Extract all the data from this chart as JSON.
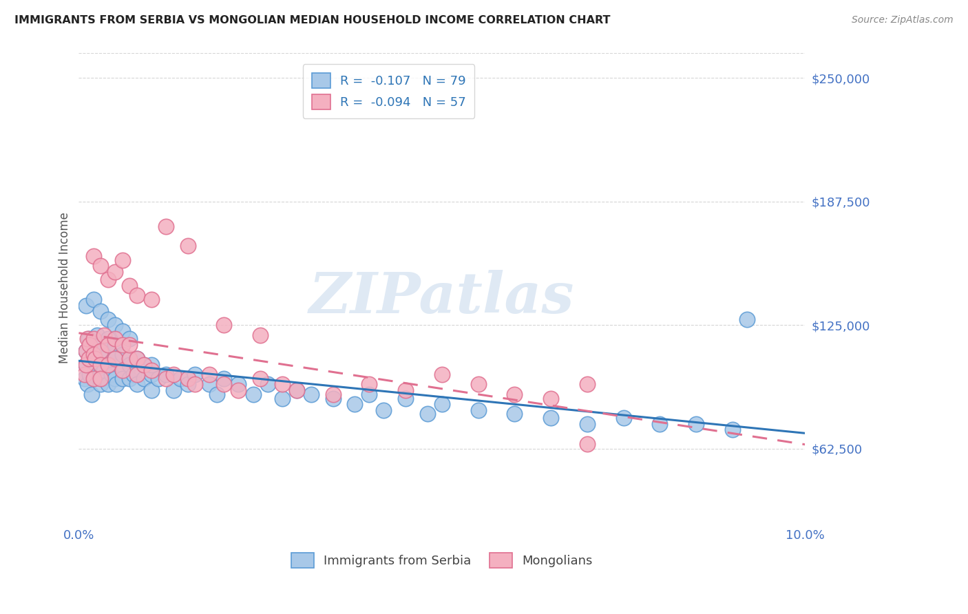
{
  "title": "IMMIGRANTS FROM SERBIA VS MONGOLIAN MEDIAN HOUSEHOLD INCOME CORRELATION CHART",
  "source": "Source: ZipAtlas.com",
  "xlabel": "",
  "ylabel": "Median Household Income",
  "watermark": "ZIPatlas",
  "series1_label": "Immigrants from Serbia",
  "series1_color": "#a8c8e8",
  "series1_edge": "#5b9bd5",
  "series1_line_color": "#2e75b6",
  "series1_R": "-0.107",
  "series1_N": "79",
  "series2_label": "Mongolians",
  "series2_color": "#f4b0c0",
  "series2_edge": "#e07090",
  "series2_line_color": "#e07090",
  "series2_R": "-0.094",
  "series2_N": "57",
  "xlim": [
    0.0,
    0.1
  ],
  "ylim": [
    25000,
    262500
  ],
  "yticks": [
    62500,
    125000,
    187500,
    250000
  ],
  "ytick_labels": [
    "$62,500",
    "$125,000",
    "$187,500",
    "$250,000"
  ],
  "xtick_labels_show": [
    "0.0%",
    "10.0%"
  ],
  "background_color": "#ffffff",
  "grid_color": "#cccccc",
  "title_color": "#222222",
  "axis_color": "#4472c4",
  "legend_R_color": "#2e75b6",
  "serbia_x": [
    0.0008,
    0.001,
    0.001,
    0.0012,
    0.0014,
    0.0015,
    0.0015,
    0.0018,
    0.002,
    0.002,
    0.002,
    0.0022,
    0.0025,
    0.003,
    0.003,
    0.003,
    0.003,
    0.0032,
    0.0035,
    0.004,
    0.004,
    0.004,
    0.0042,
    0.0045,
    0.005,
    0.005,
    0.005,
    0.0052,
    0.006,
    0.006,
    0.006,
    0.007,
    0.007,
    0.0075,
    0.008,
    0.008,
    0.009,
    0.009,
    0.01,
    0.01,
    0.011,
    0.012,
    0.013,
    0.014,
    0.015,
    0.016,
    0.018,
    0.019,
    0.02,
    0.022,
    0.024,
    0.026,
    0.028,
    0.03,
    0.032,
    0.035,
    0.038,
    0.04,
    0.042,
    0.045,
    0.048,
    0.05,
    0.055,
    0.06,
    0.065,
    0.07,
    0.075,
    0.08,
    0.085,
    0.09,
    0.001,
    0.002,
    0.003,
    0.004,
    0.005,
    0.006,
    0.007,
    0.01,
    0.092
  ],
  "serbia_y": [
    98000,
    105000,
    112000,
    95000,
    118000,
    100000,
    108000,
    90000,
    110000,
    115000,
    98000,
    102000,
    120000,
    100000,
    108000,
    95000,
    115000,
    98000,
    102000,
    110000,
    95000,
    118000,
    105000,
    100000,
    115000,
    98000,
    108000,
    95000,
    102000,
    98000,
    110000,
    105000,
    98000,
    100000,
    95000,
    108000,
    98000,
    105000,
    100000,
    92000,
    98000,
    100000,
    92000,
    98000,
    95000,
    100000,
    95000,
    90000,
    98000,
    95000,
    90000,
    95000,
    88000,
    92000,
    90000,
    88000,
    85000,
    90000,
    82000,
    88000,
    80000,
    85000,
    82000,
    80000,
    78000,
    75000,
    78000,
    75000,
    75000,
    72000,
    135000,
    138000,
    132000,
    128000,
    125000,
    122000,
    118000,
    105000,
    128000
  ],
  "mongol_x": [
    0.0008,
    0.001,
    0.001,
    0.0012,
    0.0014,
    0.0015,
    0.002,
    0.002,
    0.002,
    0.0022,
    0.003,
    0.003,
    0.003,
    0.0035,
    0.004,
    0.004,
    0.005,
    0.005,
    0.006,
    0.006,
    0.007,
    0.007,
    0.008,
    0.008,
    0.009,
    0.01,
    0.012,
    0.013,
    0.015,
    0.016,
    0.018,
    0.02,
    0.022,
    0.025,
    0.028,
    0.03,
    0.035,
    0.04,
    0.045,
    0.05,
    0.055,
    0.06,
    0.065,
    0.07,
    0.002,
    0.003,
    0.004,
    0.005,
    0.006,
    0.007,
    0.008,
    0.01,
    0.012,
    0.015,
    0.02,
    0.025,
    0.07
  ],
  "mongol_y": [
    100000,
    112000,
    105000,
    118000,
    108000,
    115000,
    110000,
    118000,
    98000,
    108000,
    112000,
    105000,
    98000,
    120000,
    115000,
    105000,
    118000,
    108000,
    115000,
    102000,
    108000,
    115000,
    100000,
    108000,
    105000,
    102000,
    98000,
    100000,
    98000,
    95000,
    100000,
    95000,
    92000,
    98000,
    95000,
    92000,
    90000,
    95000,
    92000,
    100000,
    95000,
    90000,
    88000,
    95000,
    160000,
    155000,
    148000,
    152000,
    158000,
    145000,
    140000,
    138000,
    175000,
    165000,
    125000,
    120000,
    65000
  ]
}
